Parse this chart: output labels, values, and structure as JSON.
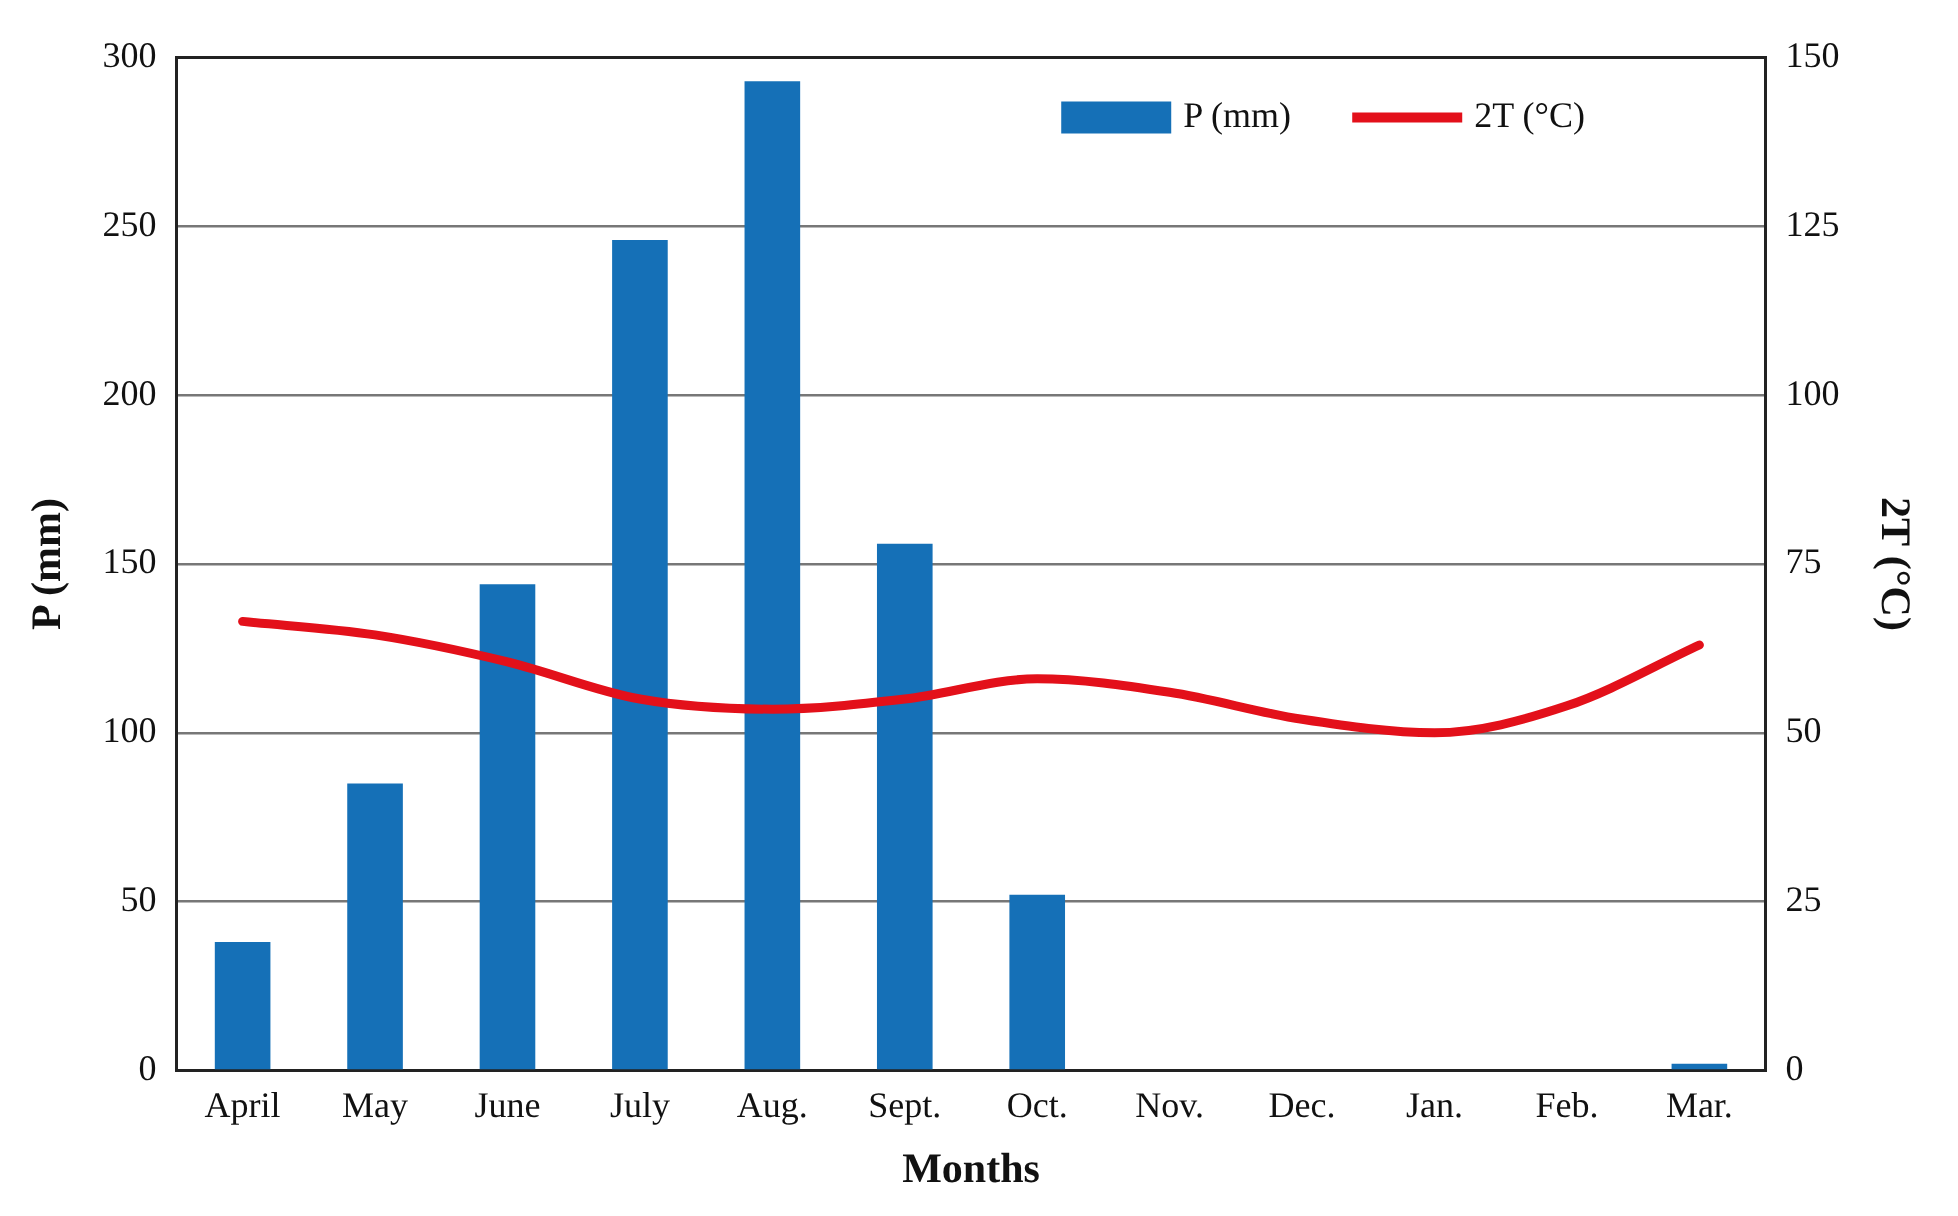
{
  "chart_data": {
    "type": "bar",
    "xlabel": "Months",
    "ylabel": "P (mm)",
    "y2label": "2T (°C)",
    "categories": [
      "April",
      "May",
      "June",
      "July",
      "Aug.",
      "Sept.",
      "Oct.",
      "Nov.",
      "Dec.",
      "Jan.",
      "Feb.",
      "Mar."
    ],
    "series": [
      {
        "name": "P (mm)",
        "color": "#1570b7",
        "values": [
          38,
          85,
          144,
          246,
          293,
          156,
          52,
          0,
          0,
          0,
          0,
          2
        ]
      },
      {
        "name": "2T (°C)",
        "type": "line",
        "axis": "y2",
        "color": "#e3101a",
        "values": [
          66.5,
          64.5,
          60.5,
          55,
          53.5,
          55,
          58,
          56,
          52,
          50,
          54,
          63
        ]
      }
    ],
    "ylim": [
      0,
      300
    ],
    "yticks": [
      0,
      50,
      100,
      150,
      200,
      250,
      300
    ],
    "y2lim": [
      0,
      150
    ],
    "y2ticks": [
      0,
      25,
      50,
      75,
      100,
      125,
      150
    ],
    "grid": "y",
    "legend": "top right",
    "marker": "none",
    "line_style": "solid"
  }
}
